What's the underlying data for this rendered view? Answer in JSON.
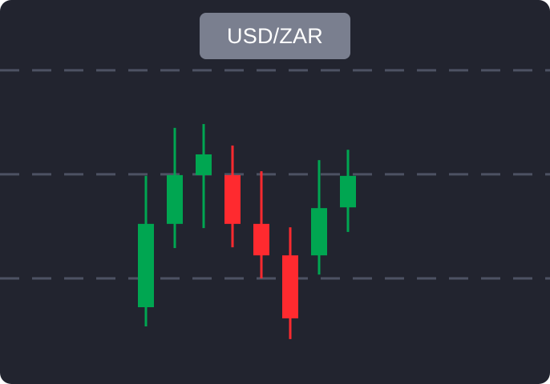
{
  "chart_data": {
    "type": "candlestick",
    "title": "USD/ZAR",
    "grid": true,
    "grid_style": "dashed horizontal",
    "ylim": [
      0,
      100
    ],
    "gridlines": [
      81.7,
      54.6,
      27.5
    ],
    "candles": [
      {
        "open": 20.0,
        "high": 54.2,
        "low": 15.0,
        "close": 41.7,
        "direction": "up"
      },
      {
        "open": 41.7,
        "high": 66.7,
        "low": 35.4,
        "close": 54.4,
        "direction": "up"
      },
      {
        "open": 54.4,
        "high": 67.7,
        "low": 40.6,
        "close": 59.8,
        "direction": "up"
      },
      {
        "open": 54.4,
        "high": 62.1,
        "low": 35.6,
        "close": 41.7,
        "direction": "down"
      },
      {
        "open": 41.7,
        "high": 55.4,
        "low": 27.5,
        "close": 33.5,
        "direction": "down"
      },
      {
        "open": 33.5,
        "high": 40.8,
        "low": 11.7,
        "close": 17.1,
        "direction": "down"
      },
      {
        "open": 33.5,
        "high": 58.3,
        "low": 28.5,
        "close": 45.8,
        "direction": "up"
      },
      {
        "open": 46.0,
        "high": 61.0,
        "low": 39.6,
        "close": 54.2,
        "direction": "up"
      }
    ]
  },
  "colors": {
    "background": "#22242f",
    "title_pill": "#7a7f8f",
    "title_text": "#ffffff",
    "grid": "#4d5263",
    "up": "#00a651",
    "down": "#ff2a2f"
  }
}
